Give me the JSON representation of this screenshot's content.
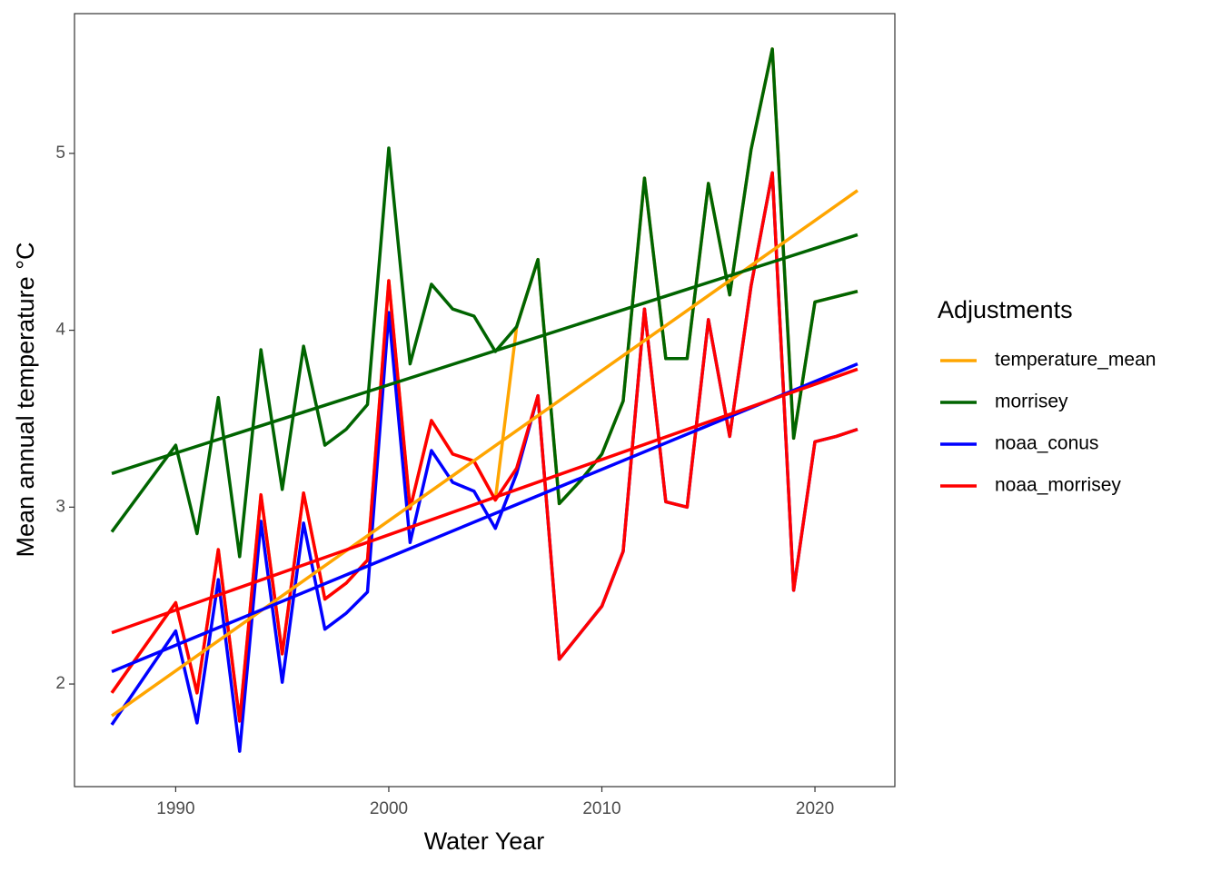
{
  "chart_data": {
    "type": "line",
    "x_label": "Water Year",
    "y_label": "Mean annual temperature °C",
    "legend_title": "Adjustments",
    "legend_position": "right",
    "grid": false,
    "x": [
      1987,
      1990,
      1991,
      1992,
      1993,
      1994,
      1995,
      1996,
      1997,
      1998,
      1999,
      2000,
      2001,
      2002,
      2003,
      2004,
      2005,
      2006,
      2007,
      2008,
      2009,
      2010,
      2011,
      2012,
      2013,
      2014,
      2015,
      2016,
      2017,
      2018,
      2019,
      2020,
      2021,
      2022
    ],
    "trend_x": [
      1987,
      2022
    ],
    "xlim": [
      1985.25,
      2023.75
    ],
    "xticks": [
      1990,
      2000,
      2010,
      2020
    ],
    "ylim": [
      1.42,
      5.79
    ],
    "yticks": [
      2,
      3,
      4,
      5
    ],
    "series": [
      {
        "name": "temperature_mean",
        "color": "#ffa500",
        "values": [
          1.95,
          2.46,
          1.95,
          2.76,
          1.79,
          3.07,
          2.17,
          3.08,
          2.48,
          2.57,
          2.7,
          4.28,
          2.99,
          3.49,
          3.3,
          3.26,
          3.04,
          4.02,
          4.4,
          3.02,
          3.15,
          3.3,
          3.6,
          4.86,
          3.84,
          3.84,
          4.83,
          4.2,
          5.02,
          5.59,
          3.39,
          4.16,
          4.19,
          4.22
        ],
        "trend": [
          1.82,
          4.79
        ]
      },
      {
        "name": "morrisey",
        "color": "#006400",
        "values": [
          2.86,
          3.35,
          2.85,
          3.62,
          2.72,
          3.89,
          3.1,
          3.91,
          3.35,
          3.44,
          3.58,
          5.03,
          3.81,
          4.26,
          4.12,
          4.08,
          3.88,
          4.02,
          4.4,
          3.02,
          3.15,
          3.3,
          3.6,
          4.86,
          3.84,
          3.84,
          4.83,
          4.2,
          5.02,
          5.59,
          3.39,
          4.16,
          4.19,
          4.22
        ],
        "trend": [
          3.19,
          4.54
        ]
      },
      {
        "name": "noaa_conus",
        "color": "#0000ff",
        "values": [
          1.77,
          2.3,
          1.78,
          2.59,
          1.62,
          2.92,
          2.01,
          2.91,
          2.31,
          2.4,
          2.52,
          4.1,
          2.8,
          3.32,
          3.14,
          3.09,
          2.88,
          3.19,
          3.63,
          2.14,
          2.29,
          2.44,
          2.75,
          4.12,
          3.03,
          3.0,
          4.06,
          3.4,
          4.25,
          4.89,
          2.53,
          3.37,
          3.4,
          3.44
        ],
        "trend": [
          2.07,
          3.81
        ]
      },
      {
        "name": "noaa_morrisey",
        "color": "#ff0000",
        "values": [
          1.95,
          2.46,
          1.95,
          2.76,
          1.79,
          3.07,
          2.17,
          3.08,
          2.48,
          2.57,
          2.7,
          4.28,
          2.99,
          3.49,
          3.3,
          3.26,
          3.04,
          3.22,
          3.63,
          2.14,
          2.29,
          2.44,
          2.75,
          4.12,
          3.03,
          3.0,
          4.06,
          3.4,
          4.25,
          4.89,
          2.53,
          3.37,
          3.4,
          3.44
        ],
        "trend": [
          2.29,
          3.78
        ]
      }
    ]
  }
}
